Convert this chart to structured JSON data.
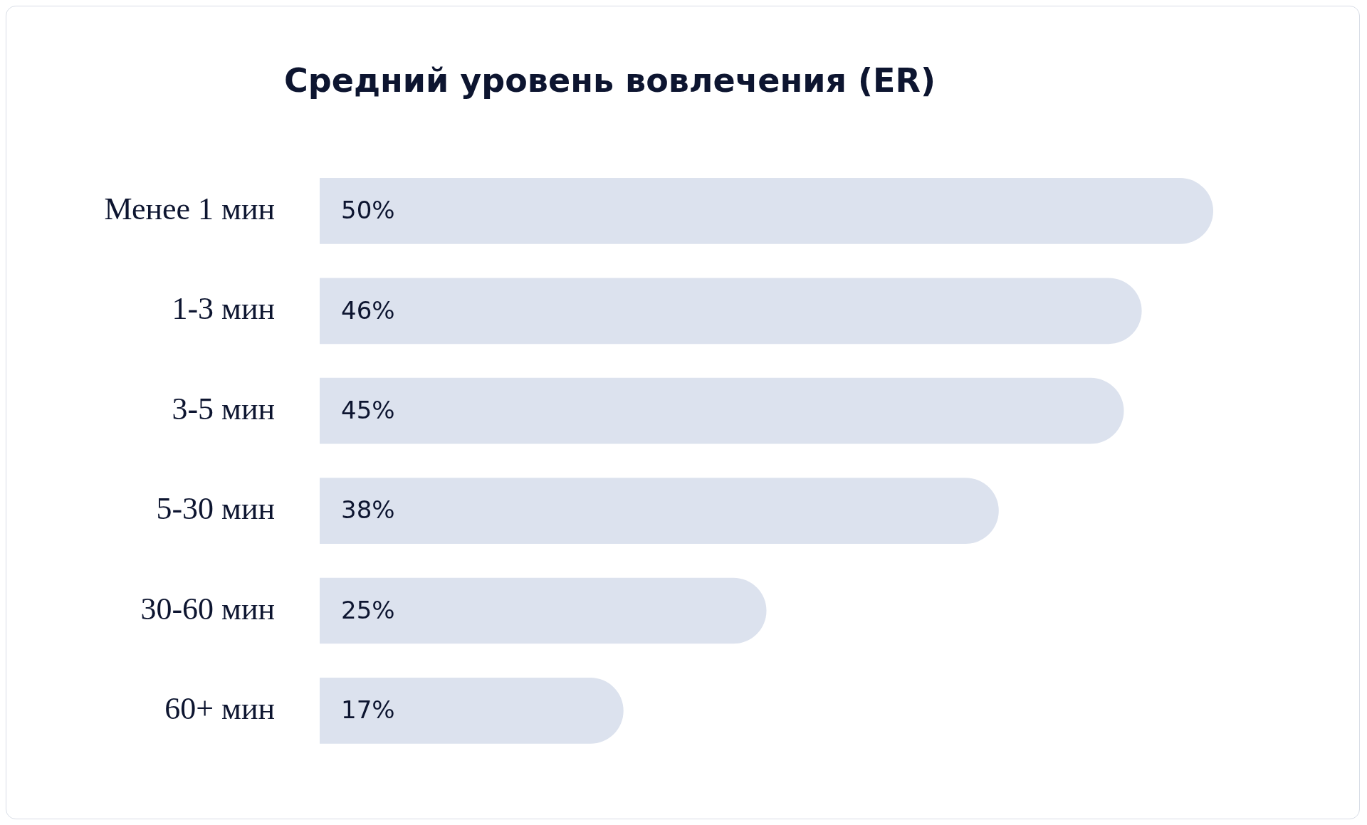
{
  "chart_data": {
    "type": "bar",
    "orientation": "horizontal",
    "title": "Средний уровень вовлечения (ER)",
    "categories": [
      "Менее 1 мин",
      "1-3 мин",
      "3-5 мин",
      "5-30 мин",
      "30-60 мин",
      "60+ мин"
    ],
    "values": [
      50,
      46,
      45,
      38,
      25,
      17
    ],
    "color": "#dce2ee",
    "value_labels": [
      "50%",
      "46%",
      "45%",
      "38%",
      "25%",
      "17%"
    ]
  }
}
